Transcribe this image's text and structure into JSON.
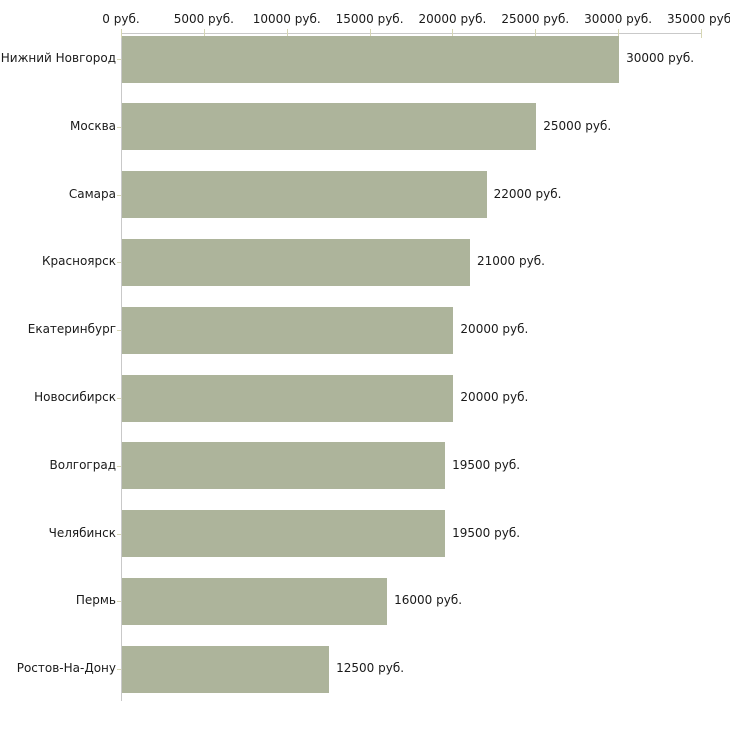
{
  "chart_data": {
    "type": "bar",
    "orientation": "horizontal",
    "title": "",
    "xlabel": "",
    "ylabel": "",
    "categories": [
      "Нижний Новгород",
      "Москва",
      "Самара",
      "Красноярск",
      "Екатеринбург",
      "Новосибирск",
      "Волгоград",
      "Челябинск",
      "Пермь",
      "Ростов-На-Дону"
    ],
    "values": [
      30000,
      25000,
      22000,
      21000,
      20000,
      20000,
      19500,
      19500,
      16000,
      12500
    ],
    "value_labels": [
      "30000 руб.",
      "25000 руб.",
      "22000 руб.",
      "21000 руб.",
      "20000 руб.",
      "20000 руб.",
      "19500 руб.",
      "19500 руб.",
      "16000 руб.",
      "12500 руб."
    ],
    "x_ticks": [
      0,
      5000,
      10000,
      15000,
      20000,
      25000,
      30000,
      35000
    ],
    "x_tick_labels": [
      "0 руб.",
      "5000 руб.",
      "10000 руб.",
      "15000 руб.",
      "20000 руб.",
      "25000 руб.",
      "30000 руб.",
      "35000 руб."
    ],
    "xlim": [
      0,
      35000
    ],
    "grid": false,
    "legend": false,
    "colors": {
      "bar_fill": "#adb49b",
      "axis_line": "#c9c9c9",
      "tick_mark": "#d6d6b4",
      "text": "#1a1a1a",
      "background": "#ffffff"
    }
  }
}
